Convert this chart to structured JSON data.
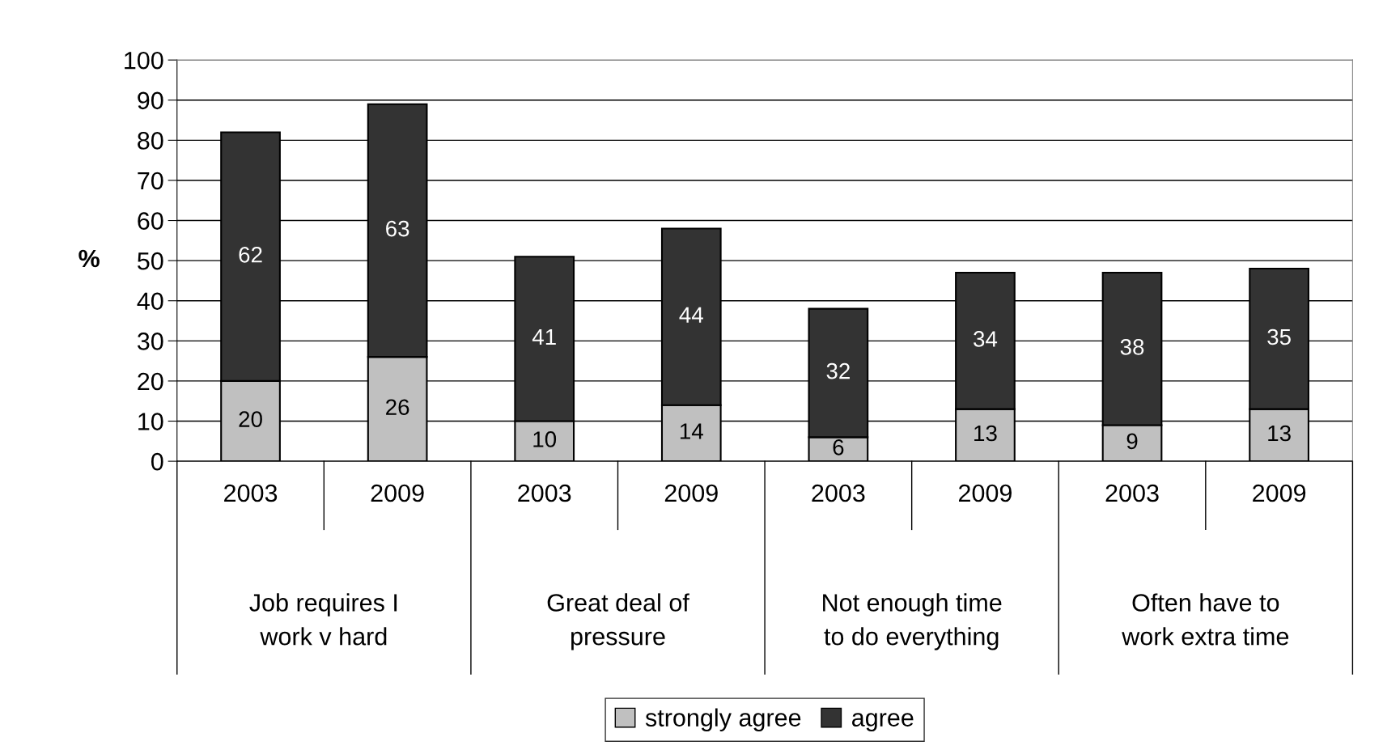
{
  "chart_data": {
    "type": "bar",
    "stacked": true,
    "ylabel": "%",
    "categories": [
      "2003",
      "2009",
      "2003",
      "2009",
      "2003",
      "2009",
      "2003",
      "2009"
    ],
    "annotations": [
      "Job requires I\nwork v hard",
      "Great deal of\npressure",
      "Not enough time\nto do everything",
      "Often have to\nwork extra time"
    ],
    "series": [
      {
        "name": "strongly agree",
        "color": "#c0c0c0",
        "values": [
          20,
          26,
          10,
          14,
          6,
          13,
          9,
          13
        ]
      },
      {
        "name": "agree",
        "color": "#333333",
        "values": [
          62,
          63,
          41,
          44,
          32,
          34,
          38,
          35
        ]
      }
    ],
    "ylim": [
      0,
      100
    ],
    "yticks": [
      0,
      10,
      20,
      30,
      40,
      50,
      60,
      70,
      80,
      90,
      100
    ],
    "grid": "y",
    "legend": "bottom",
    "data_labels": true
  }
}
